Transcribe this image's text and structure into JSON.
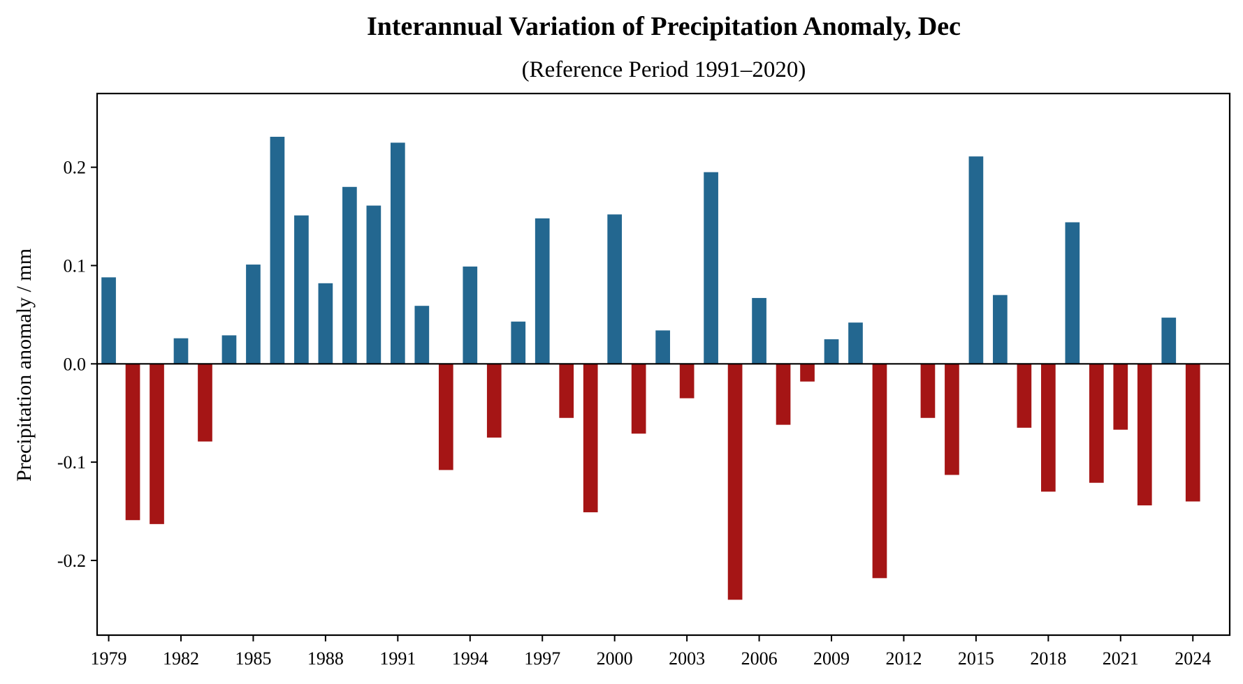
{
  "chart_data": {
    "type": "bar",
    "title": "Interannual Variation of Precipitation Anomaly, Dec",
    "subtitle": "(Reference Period 1991–2020)",
    "xlabel": "",
    "ylabel": "Precipitation anomaly / mm",
    "xlim": [
      1978.52,
      2025.53
    ],
    "ylim": [
      -0.276,
      0.275
    ],
    "grid": false,
    "legend": null,
    "bar_width_years": 0.6,
    "zero_line": true,
    "colors": {
      "positive": "#236790",
      "negative": "#a51515",
      "axis": "#000000"
    },
    "x_ticks": [
      1979,
      1982,
      1985,
      1988,
      1991,
      1994,
      1997,
      2000,
      2003,
      2006,
      2009,
      2012,
      2015,
      2018,
      2021,
      2024
    ],
    "x_tick_labels": [
      "1979",
      "1982",
      "1985",
      "1988",
      "1991",
      "1994",
      "1997",
      "2000",
      "2003",
      "2006",
      "2009",
      "2012",
      "2015",
      "2018",
      "2021",
      "2024"
    ],
    "y_ticks": [
      -0.2,
      -0.1,
      0.0,
      0.1,
      0.2
    ],
    "y_tick_labels": [
      "-0.2",
      "-0.1",
      "0.0",
      "0.1",
      "0.2"
    ],
    "categories": [
      1979,
      1980,
      1981,
      1982,
      1983,
      1984,
      1985,
      1986,
      1987,
      1988,
      1989,
      1990,
      1991,
      1992,
      1993,
      1994,
      1995,
      1996,
      1997,
      1998,
      1999,
      2000,
      2001,
      2002,
      2003,
      2004,
      2005,
      2006,
      2007,
      2008,
      2009,
      2010,
      2011,
      2012,
      2013,
      2014,
      2015,
      2016,
      2017,
      2018,
      2019,
      2020,
      2021,
      2022,
      2023,
      2024
    ],
    "values": [
      0.088,
      -0.159,
      -0.163,
      0.026,
      -0.079,
      0.029,
      0.101,
      0.231,
      0.151,
      0.082,
      0.18,
      0.161,
      0.225,
      0.059,
      -0.108,
      0.099,
      -0.075,
      0.043,
      0.148,
      -0.055,
      -0.151,
      0.152,
      -0.071,
      0.034,
      -0.035,
      0.195,
      -0.24,
      0.067,
      -0.062,
      -0.018,
      0.025,
      0.042,
      -0.218,
      0.0,
      -0.055,
      -0.113,
      0.211,
      0.07,
      -0.065,
      -0.13,
      0.144,
      -0.121,
      -0.067,
      -0.144,
      0.047,
      -0.14
    ]
  }
}
